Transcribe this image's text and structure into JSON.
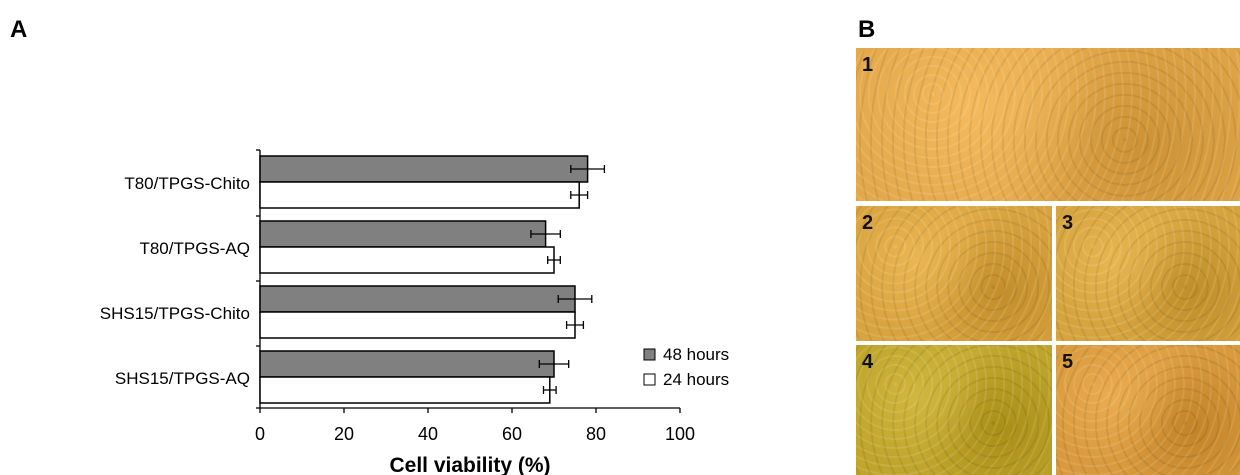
{
  "panel_a": {
    "label": "A"
  },
  "panel_b": {
    "label": "B",
    "photos": [
      {
        "number": "1",
        "base_color": "#e3a84a"
      },
      {
        "number": "2",
        "base_color": "#d9a440"
      },
      {
        "number": "3",
        "base_color": "#d6a43e"
      },
      {
        "number": "4",
        "base_color": "#bfa52c"
      },
      {
        "number": "5",
        "base_color": "#d89a3c"
      }
    ]
  },
  "chart_data": {
    "type": "bar",
    "orientation": "horizontal",
    "categories": [
      "T80/TPGS-Chito",
      "T80/TPGS-AQ",
      "SHS15/TPGS-Chito",
      "SHS15/TPGS-AQ"
    ],
    "series": [
      {
        "name": "48 hours",
        "color": "#808080",
        "values": [
          78,
          68,
          75,
          70
        ],
        "errors": [
          4,
          3.5,
          4,
          3.5
        ]
      },
      {
        "name": "24 hours",
        "color": "#ffffff",
        "values": [
          76,
          70,
          75,
          69
        ],
        "errors": [
          2,
          1.5,
          2,
          1.5
        ]
      }
    ],
    "xlabel": "Cell viability (%)",
    "ylabel": "",
    "xlim": [
      0,
      100
    ],
    "xticks": [
      0,
      20,
      40,
      60,
      80,
      100
    ],
    "legend_position": "bottom-right",
    "grid": false
  }
}
